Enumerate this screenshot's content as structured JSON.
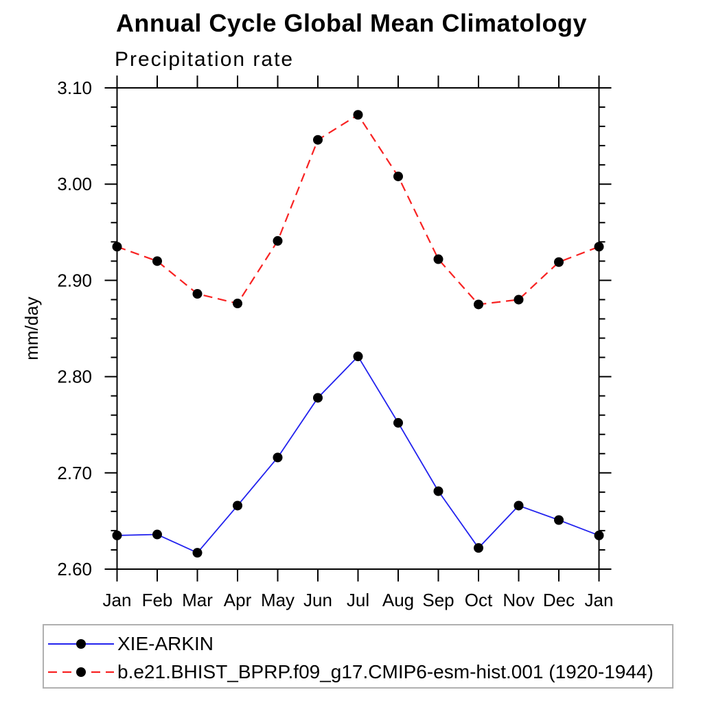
{
  "figure": {
    "title": "Annual Cycle Global Mean Climatology",
    "subtitle": "Precipitation rate"
  },
  "chart_data": {
    "type": "line",
    "title": "Annual Cycle Global Mean Climatology",
    "subtitle": "Precipitation rate",
    "xlabel": "",
    "ylabel": "mm/day",
    "categories": [
      "Jan",
      "Feb",
      "Mar",
      "Apr",
      "May",
      "Jun",
      "Jul",
      "Aug",
      "Sep",
      "Oct",
      "Nov",
      "Dec",
      "Jan"
    ],
    "ylim": [
      2.6,
      3.1
    ],
    "ytick_major_interval": 0.1,
    "ytick_minor_interval": 0.02,
    "ytick_labels": [
      "2.60",
      "2.70",
      "2.80",
      "2.90",
      "3.00",
      "3.10"
    ],
    "grid": false,
    "legend_position": "bottom",
    "axis_color": "#000000",
    "marker_color": "#000000",
    "series": [
      {
        "name": "XIE-ARKIN",
        "color": "#2222ee",
        "line_style": "solid",
        "marker": "circle",
        "values": [
          2.635,
          2.636,
          2.617,
          2.666,
          2.716,
          2.778,
          2.821,
          2.752,
          2.681,
          2.622,
          2.666,
          2.651,
          2.635
        ]
      },
      {
        "name": "b.e21.BHIST_BPRP.f09_g17.CMIP6-esm-hist.001 (1920-1944)",
        "color": "#f82222",
        "line_style": "dashed",
        "marker": "circle",
        "values": [
          2.935,
          2.92,
          2.886,
          2.876,
          2.941,
          3.046,
          3.072,
          3.008,
          2.922,
          2.875,
          2.88,
          2.919,
          2.935
        ]
      }
    ]
  }
}
